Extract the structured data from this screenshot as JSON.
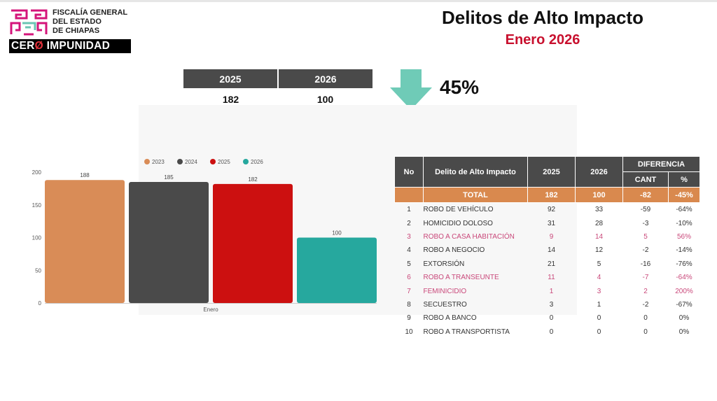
{
  "header": {
    "org_lines": [
      "FISCALÍA GENERAL",
      "DEL ESTADO",
      "DE CHIAPAS"
    ],
    "slogan_part1": "CER",
    "slogan_zero": "Ø",
    "slogan_part2": " IMPUNIDAD",
    "title": "Delitos de Alto Impacto",
    "subtitle": "Enero 2026"
  },
  "comparison": {
    "years": [
      "2025",
      "2026"
    ],
    "values": [
      "182",
      "100"
    ],
    "change": "45%",
    "arrow_color": "#6fcbb7"
  },
  "chart_data": {
    "type": "bar",
    "categories": [
      "Enero"
    ],
    "series": [
      {
        "name": "2023",
        "values": [
          188
        ],
        "color": "#d98c57"
      },
      {
        "name": "2024",
        "values": [
          185
        ],
        "color": "#4a4a4a"
      },
      {
        "name": "2025",
        "values": [
          182
        ],
        "color": "#cc1010"
      },
      {
        "name": "2026",
        "values": [
          100
        ],
        "color": "#26a89e"
      }
    ],
    "ylim": [
      0,
      200
    ],
    "yticks": [
      0,
      50,
      100,
      150,
      200
    ],
    "grid": false,
    "legend_position": "top"
  },
  "table": {
    "headers": {
      "no": "No",
      "crime": "Delito de Alto Impacto",
      "y2025": "2025",
      "y2026": "2026",
      "diff": "DIFERENCIA",
      "cant": "CANT",
      "pct": "%"
    },
    "total": {
      "label": "TOTAL",
      "y2025": "182",
      "y2026": "100",
      "cant": "-82",
      "pct": "-45%"
    },
    "rows": [
      {
        "no": "1",
        "name": "ROBO DE VEHÍCULO",
        "y2025": "92",
        "y2026": "33",
        "cant": "-59",
        "pct": "-64%",
        "highlight": false
      },
      {
        "no": "2",
        "name": "HOMICIDIO DOLOSO",
        "y2025": "31",
        "y2026": "28",
        "cant": "-3",
        "pct": "-10%",
        "highlight": false
      },
      {
        "no": "3",
        "name": "ROBO A CASA HABITACIÓN",
        "y2025": "9",
        "y2026": "14",
        "cant": "5",
        "pct": "56%",
        "highlight": true
      },
      {
        "no": "4",
        "name": "ROBO A NEGOCIO",
        "y2025": "14",
        "y2026": "12",
        "cant": "-2",
        "pct": "-14%",
        "highlight": false
      },
      {
        "no": "5",
        "name": "EXTORSIÓN",
        "y2025": "21",
        "y2026": "5",
        "cant": "-16",
        "pct": "-76%",
        "highlight": false
      },
      {
        "no": "6",
        "name": "ROBO A TRANSEUNTE",
        "y2025": "11",
        "y2026": "4",
        "cant": "-7",
        "pct": "-64%",
        "highlight": true
      },
      {
        "no": "7",
        "name": "FEMINICIDIO",
        "y2025": "1",
        "y2026": "3",
        "cant": "2",
        "pct": "200%",
        "highlight": true
      },
      {
        "no": "8",
        "name": "SECUESTRO",
        "y2025": "3",
        "y2026": "1",
        "cant": "-2",
        "pct": "-67%",
        "highlight": false
      },
      {
        "no": "9",
        "name": "ROBO A BANCO",
        "y2025": "0",
        "y2026": "0",
        "cant": "0",
        "pct": "0%",
        "highlight": false
      },
      {
        "no": "10",
        "name": "ROBO A TRANSPORTISTA",
        "y2025": "0",
        "y2026": "0",
        "cant": "0",
        "pct": "0%",
        "highlight": false
      }
    ]
  }
}
